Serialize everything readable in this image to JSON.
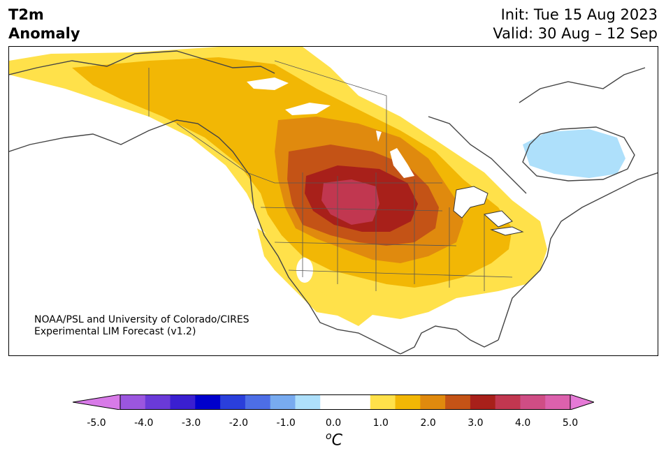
{
  "title": {
    "line1": "T2m",
    "line2": "Anomaly"
  },
  "header": {
    "init": "Init: Tue 15 Aug 2023",
    "valid": "Valid: 30 Aug – 12 Sep"
  },
  "credit": {
    "line1": "NOAA/PSL and University of Colorado/CIRES",
    "line2": "Experimental LIM Forecast (v1.2)"
  },
  "colorbar": {
    "ticks": [
      "-5.0",
      "-4.0",
      "-3.0",
      "-2.0",
      "-1.0",
      "0.0",
      "1.0",
      "2.0",
      "3.0",
      "4.0",
      "5.0"
    ],
    "unit_symbol": "o",
    "unit_letter": "C",
    "colors": [
      "#d87ae8",
      "#9b56df",
      "#6a3ad8",
      "#3a1fd0",
      "#0000cc",
      "#2a3fdb",
      "#4d6ee6",
      "#78abf0",
      "#aee0fb",
      "#ffffff",
      "#ffffff",
      "#ffe14a",
      "#f2b705",
      "#e08a0e",
      "#c45316",
      "#a8201a",
      "#c13750",
      "#cf4d85",
      "#dc61ad",
      "#e57ad6"
    ]
  },
  "map_layers": [
    "coastline",
    "state-borders",
    "anomaly-fill"
  ]
}
